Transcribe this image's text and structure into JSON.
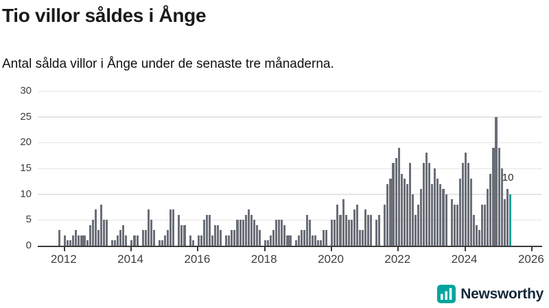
{
  "header": {
    "title": "Tio villor såldes i Ånge",
    "subtitle": "Antal sålda villor i Ånge under de senaste tre månaderna."
  },
  "chart_data": {
    "type": "bar",
    "title": "Tio villor såldes i Ånge",
    "subtitle": "Antal sålda villor i Ånge under de senaste tre månaderna.",
    "xlabel": "",
    "ylabel": "",
    "frequency": "monthly",
    "x_start_month": "2011-11",
    "x_end_month": "2025-05",
    "values": [
      3,
      0,
      2,
      1,
      1,
      2,
      3,
      2,
      2,
      2,
      1,
      4,
      5,
      7,
      3,
      8,
      5,
      5,
      0,
      1,
      1,
      2,
      3,
      4,
      2,
      0,
      1,
      2,
      2,
      0,
      3,
      3,
      7,
      5,
      3,
      0,
      1,
      1,
      2,
      3,
      7,
      7,
      0,
      6,
      4,
      4,
      0,
      2,
      1,
      0,
      2,
      2,
      5,
      6,
      6,
      2,
      4,
      4,
      3,
      0,
      2,
      2,
      3,
      3,
      5,
      5,
      5,
      6,
      7,
      6,
      5,
      4,
      3,
      0,
      1,
      1,
      2,
      3,
      5,
      5,
      5,
      4,
      2,
      2,
      0,
      1,
      2,
      3,
      3,
      6,
      5,
      2,
      2,
      1,
      1,
      3,
      3,
      0,
      5,
      5,
      8,
      6,
      9,
      6,
      5,
      5,
      7,
      8,
      3,
      3,
      7,
      6,
      6,
      0,
      5,
      6,
      0,
      8,
      12,
      13,
      16,
      17,
      19,
      14,
      13,
      12,
      16,
      10,
      6,
      8,
      11,
      16,
      18,
      16,
      12,
      15,
      13,
      12,
      11,
      10,
      0,
      9,
      8,
      8,
      13,
      16,
      18,
      16,
      13,
      6,
      4,
      3,
      8,
      8,
      11,
      14,
      19,
      25,
      19,
      15,
      9,
      11,
      10
    ],
    "highlight": {
      "index": 162,
      "value": 10,
      "label": "10"
    },
    "ylim": [
      0,
      30
    ],
    "yticks": [
      0,
      5,
      10,
      15,
      20,
      25,
      30
    ],
    "xticks": [
      2012,
      2014,
      2016,
      2018,
      2020,
      2022,
      2024,
      2026
    ],
    "grid": "horizontal",
    "legend": "none"
  },
  "annotation": {
    "text": "10"
  },
  "footer": {
    "brand": "Newsworthy"
  },
  "colors": {
    "bar": "#6a6e77",
    "accent": "#00a59d",
    "brand_navy": "#14293a",
    "grid": "#e4e4e4",
    "axis": "#3a3a3a",
    "text": "#1a1a1a"
  }
}
